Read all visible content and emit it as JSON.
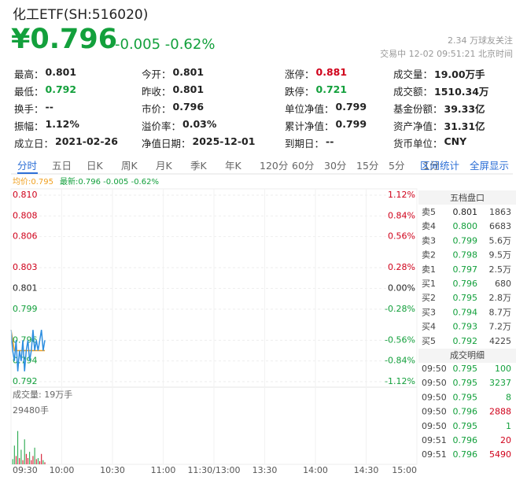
{
  "header": {
    "title": "化工ETF(SH:516020)",
    "price": "¥0.796",
    "change": "-0.005 -0.62%",
    "followers": "2.34 万球友关注",
    "status": "交易中 12-02 09:51:21 北京时间"
  },
  "stats": [
    [
      {
        "label": "最高：",
        "value": "0.801"
      },
      {
        "label": "今开：",
        "value": "0.801"
      },
      {
        "label": "涨停：",
        "value": "0.881",
        "color": "#d0021b"
      },
      {
        "label": "成交量：",
        "value": "19.00万手"
      }
    ],
    [
      {
        "label": "最低：",
        "value": "0.792",
        "color": "#13a03c"
      },
      {
        "label": "昨收：",
        "value": "0.801"
      },
      {
        "label": "跌停：",
        "value": "0.721",
        "color": "#13a03c"
      },
      {
        "label": "成交额：",
        "value": "1510.34万"
      }
    ],
    [
      {
        "label": "换手：",
        "value": "--"
      },
      {
        "label": "市价：",
        "value": "0.796"
      },
      {
        "label": "单位净值：",
        "value": "0.799"
      },
      {
        "label": "基金份额：",
        "value": "39.33亿"
      }
    ],
    [
      {
        "label": "振幅：",
        "value": "1.12%"
      },
      {
        "label": "溢价率：",
        "value": "0.03%"
      },
      {
        "label": "累计净值：",
        "value": "0.799"
      },
      {
        "label": "资产净值：",
        "value": "31.31亿"
      }
    ],
    [
      {
        "label": "成立日：",
        "value": "2021-02-26"
      },
      {
        "label": "净值日期：",
        "value": "2025-12-01"
      },
      {
        "label": "到期日：",
        "value": "--"
      },
      {
        "label": "货币单位：",
        "value": "CNY"
      }
    ]
  ],
  "tabs": [
    "分时",
    "五日",
    "日K",
    "周K",
    "月K",
    "季K",
    "年K",
    "120分",
    "60分",
    "30分",
    "15分",
    "5分",
    "1分"
  ],
  "tab_actions": [
    "区间统计",
    "全屏显示"
  ],
  "legend": {
    "avg": "均价:0.795",
    "latest": "最新:0.796 -0.005 -0.62%"
  },
  "intraday": {
    "xlim": [
      0,
      240
    ],
    "xticks": [
      {
        "value": 0,
        "label": "09:30"
      },
      {
        "value": 30,
        "label": "10:00"
      },
      {
        "value": 60,
        "label": "10:30"
      },
      {
        "value": 90,
        "label": "11:00"
      },
      {
        "value": 120,
        "label": "11:30/13:00"
      },
      {
        "value": 150,
        "label": "13:30"
      },
      {
        "value": 180,
        "label": "14:00"
      },
      {
        "value": 210,
        "label": "14:30"
      },
      {
        "value": 240,
        "label": "15:00"
      }
    ],
    "ylim": [
      0.792,
      0.81
    ],
    "yticks": [
      {
        "value": 0.81,
        "label": "0.810"
      },
      {
        "value": 0.808,
        "label": "0.808"
      },
      {
        "value": 0.806,
        "label": "0.806"
      },
      {
        "value": 0.803,
        "label": "0.803"
      },
      0.801,
      0.799,
      0.796,
      0.794,
      0.792
    ],
    "percent_labels": [
      "1.12%",
      "0.84%",
      "0.56%",
      "0.28%",
      "0.00%",
      "-0.28%",
      "-0.56%",
      "-0.84%",
      "-1.12%"
    ],
    "price": {
      "color": "#2d8ee0",
      "values": [
        0.797,
        0.795,
        0.794,
        0.796,
        0.793,
        0.795,
        0.794,
        0.796,
        0.793,
        0.795,
        0.796,
        0.794,
        0.795,
        0.797,
        0.795,
        0.796,
        0.795,
        0.796,
        0.797,
        0.795,
        0.796
      ]
    },
    "average": {
      "color": "#f0a020",
      "values": [
        0.797,
        0.796,
        0.795,
        0.795,
        0.795,
        0.795,
        0.795,
        0.795,
        0.795,
        0.795,
        0.795,
        0.795,
        0.795,
        0.795,
        0.795,
        0.795,
        0.795,
        0.795,
        0.795,
        0.795,
        0.795
      ]
    },
    "volume_title": "成交量: 19万手",
    "volume_max_label": "29480手",
    "volume_ylim": [
      0,
      29480
    ],
    "volumes": [
      29480,
      2500,
      9000,
      4000,
      16000,
      3000,
      7000,
      2000,
      12000,
      5000,
      3000,
      6000,
      2000,
      4000,
      8000,
      2500,
      3000,
      1500,
      5000,
      2000,
      1000
    ],
    "volume_colors": [
      "#d0021b",
      "#13a03c",
      "#13a03c",
      "#d0021b",
      "#13a03c",
      "#d0021b",
      "#13a03c",
      "#d0021b",
      "#13a03c",
      "#d0021b",
      "#d0021b",
      "#13a03c",
      "#d0021b",
      "#d0021b",
      "#13a03c",
      "#d0021b",
      "#13a03c",
      "#d0021b",
      "#d0021b",
      "#13a03c",
      "#d0021b"
    ]
  },
  "order_book": {
    "title": "五档盘口",
    "rows": [
      [
        "卖5",
        "0.801",
        "1863"
      ],
      [
        "卖4",
        "0.800",
        "6683"
      ],
      [
        "卖3",
        "0.799",
        "5.6万"
      ],
      [
        "卖2",
        "0.798",
        "9.5万"
      ],
      [
        "卖1",
        "0.797",
        "2.5万"
      ],
      [
        "买1",
        "0.796",
        "680"
      ],
      [
        "买2",
        "0.795",
        "2.8万"
      ],
      [
        "买3",
        "0.794",
        "8.7万"
      ],
      [
        "买4",
        "0.793",
        "7.2万"
      ],
      [
        "买5",
        "0.792",
        "4225"
      ]
    ],
    "price_colors": [
      "#222",
      "#13a03c",
      "#13a03c",
      "#13a03c",
      "#13a03c",
      "#13a03c",
      "#13a03c",
      "#13a03c",
      "#13a03c",
      "#13a03c"
    ]
  },
  "trades": {
    "title": "成交明细",
    "rows": [
      [
        "09:50",
        "0.795",
        "100"
      ],
      [
        "09:50",
        "0.795",
        "3237"
      ],
      [
        "09:50",
        "0.795",
        "8"
      ],
      [
        "09:50",
        "0.796",
        "2888"
      ],
      [
        "09:50",
        "0.795",
        "1"
      ],
      [
        "09:51",
        "0.796",
        "20"
      ],
      [
        "09:51",
        "0.796",
        "5490"
      ]
    ],
    "volume_colors": [
      "#13a03c",
      "#13a03c",
      "#13a03c",
      "#d0021b",
      "#13a03c",
      "#d0021b",
      "#d0021b"
    ]
  }
}
